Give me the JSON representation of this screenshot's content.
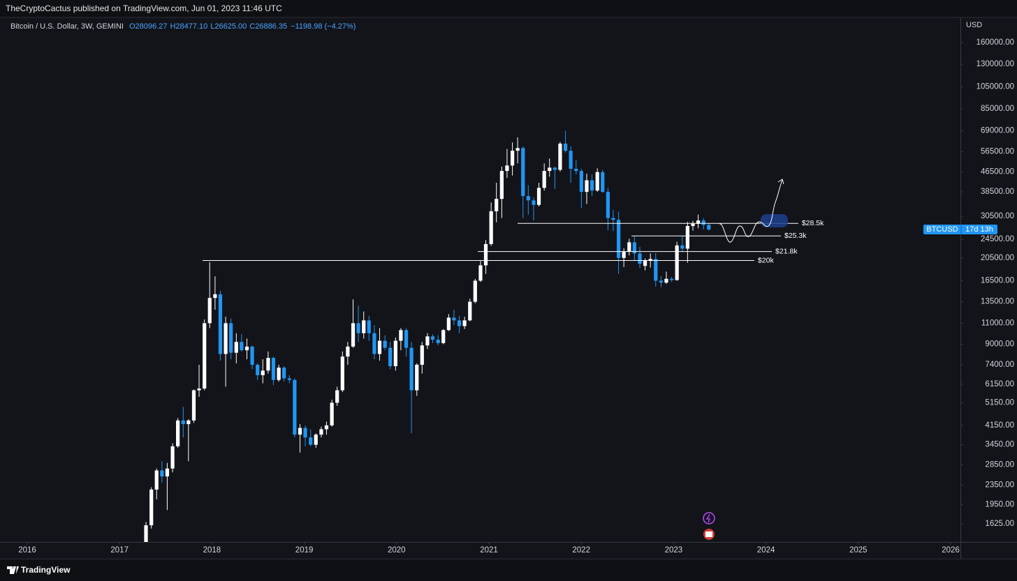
{
  "header": {
    "publisher": "TheCryptoCactus published on TradingView.com, Jun 01, 2023 11:46 UTC"
  },
  "footer": {
    "brand": "TradingView"
  },
  "chart_data": {
    "type": "candlestick",
    "title": "Bitcoin / U.S. Dollar, 3W, GEMINI",
    "ohlc_legend": [
      "O28096.27",
      "H28477.10",
      "L26625.00",
      "C26886.35",
      "−1198.98 (−4.27%)"
    ],
    "y_axis_label": "USD",
    "log_scale": true,
    "grid": false,
    "up_color": "#ffffff",
    "down_color": "#2196f3",
    "xlim": [
      2015.705,
      2026.106
    ],
    "xticks": [
      2016,
      2017,
      2018,
      2019,
      2020,
      2021,
      2022,
      2023,
      2024,
      2025,
      2026
    ],
    "ylim": [
      1365,
      203300
    ],
    "yticks": [
      {
        "value": 1625,
        "label": "1625.00"
      },
      {
        "value": 1950,
        "label": "1950.00"
      },
      {
        "value": 2350,
        "label": "2350.00"
      },
      {
        "value": 2850,
        "label": "2850.00"
      },
      {
        "value": 3450,
        "label": "3450.00"
      },
      {
        "value": 4150,
        "label": "4150.00"
      },
      {
        "value": 5150,
        "label": "5150.00"
      },
      {
        "value": 6150,
        "label": "6150.00"
      },
      {
        "value": 7400,
        "label": "7400.00"
      },
      {
        "value": 9000,
        "label": "9000.00"
      },
      {
        "value": 11000,
        "label": "11000.00"
      },
      {
        "value": 13500,
        "label": "13500.00"
      },
      {
        "value": 16500,
        "label": "16500.00"
      },
      {
        "value": 20500,
        "label": "20500.00"
      },
      {
        "value": 24500,
        "label": "24500.00"
      },
      {
        "value": 30500,
        "label": "30500.00"
      },
      {
        "value": 38500,
        "label": "38500.00"
      },
      {
        "value": 46500,
        "label": "46500.00"
      },
      {
        "value": 56500,
        "label": "56500.00"
      },
      {
        "value": 69000,
        "label": "69000.00"
      },
      {
        "value": 85000,
        "label": "85000.00"
      },
      {
        "value": 105000,
        "label": "105000.00"
      },
      {
        "value": 130000,
        "label": "130000.00"
      },
      {
        "value": 160000,
        "label": "160000.00"
      }
    ],
    "x": [
      2017.286,
      2017.344,
      2017.401,
      2017.459,
      2017.516,
      2017.574,
      2017.631,
      2017.689,
      2017.746,
      2017.804,
      2017.861,
      2017.919,
      2017.976,
      2018.034,
      2018.091,
      2018.149,
      2018.206,
      2018.264,
      2018.321,
      2018.379,
      2018.436,
      2018.494,
      2018.551,
      2018.609,
      2018.666,
      2018.724,
      2018.781,
      2018.839,
      2018.896,
      2018.954,
      2019.011,
      2019.069,
      2019.126,
      2019.184,
      2019.241,
      2019.299,
      2019.356,
      2019.414,
      2019.471,
      2019.529,
      2019.586,
      2019.644,
      2019.701,
      2019.759,
      2019.816,
      2019.874,
      2019.931,
      2019.989,
      2020.046,
      2020.104,
      2020.161,
      2020.219,
      2020.276,
      2020.334,
      2020.391,
      2020.449,
      2020.506,
      2020.564,
      2020.621,
      2020.679,
      2020.736,
      2020.794,
      2020.851,
      2020.909,
      2020.966,
      2021.024,
      2021.081,
      2021.139,
      2021.196,
      2021.254,
      2021.311,
      2021.369,
      2021.426,
      2021.484,
      2021.541,
      2021.599,
      2021.656,
      2021.714,
      2021.771,
      2021.829,
      2021.886,
      2021.944,
      2022.001,
      2022.059,
      2022.116,
      2022.174,
      2022.231,
      2022.289,
      2022.346,
      2022.404,
      2022.461,
      2022.519,
      2022.576,
      2022.634,
      2022.691,
      2022.749,
      2022.806,
      2022.864,
      2022.921,
      2022.979,
      2023.036,
      2023.094,
      2023.151,
      2023.209,
      2023.266,
      2023.324,
      2023.381
    ],
    "open": [
      1300,
      1600,
      2250,
      2700,
      2550,
      2750,
      3400,
      4350,
      4200,
      4350,
      5800,
      5900,
      11000,
      14000,
      14500,
      8200,
      11000,
      8300,
      9200,
      8500,
      8800,
      7400,
      6700,
      7000,
      7900,
      6400,
      7200,
      6500,
      6400,
      3800,
      4050,
      3700,
      3450,
      3800,
      4000,
      4150,
      5150,
      5800,
      8000,
      8800,
      11000,
      10000,
      11300,
      10000,
      8200,
      9300,
      8700,
      7300,
      9300,
      10300,
      8700,
      5800,
      7400,
      8900,
      9700,
      9400,
      9100,
      10300,
      11600,
      11300,
      10700,
      11300,
      13500,
      16500,
      19100,
      23400,
      32000,
      36000,
      47000,
      49500,
      57000,
      58500,
      37000,
      35500,
      34000,
      40000,
      47000,
      48500,
      47500,
      61000,
      57000,
      48000,
      47000,
      38500,
      43000,
      39000,
      46500,
      38500,
      30000,
      29500,
      20500,
      21800,
      23800,
      21400,
      19000,
      20000,
      20300,
      16500,
      16200,
      16800,
      16600,
      23100,
      22400,
      27800,
      28400,
      29300,
      28096.27
    ],
    "high": [
      1650,
      2300,
      2750,
      2950,
      2900,
      3500,
      4450,
      4950,
      4400,
      5850,
      7400,
      11400,
      19700,
      17200,
      15000,
      11700,
      11500,
      10000,
      9900,
      9500,
      8900,
      7500,
      7800,
      8400,
      8000,
      7400,
      7300,
      6700,
      6500,
      4200,
      4150,
      4000,
      3850,
      4100,
      4300,
      5300,
      6000,
      8400,
      9200,
      13800,
      13000,
      12300,
      11800,
      10800,
      10500,
      9800,
      9200,
      9600,
      10500,
      10500,
      9200,
      7500,
      9200,
      10000,
      9900,
      9800,
      10400,
      12000,
      12500,
      11800,
      11700,
      13900,
      16800,
      19900,
      24300,
      34800,
      42000,
      49000,
      58000,
      61700,
      64800,
      59500,
      41000,
      36500,
      42000,
      50500,
      52900,
      49000,
      62000,
      69000,
      59500,
      52000,
      48000,
      45800,
      45500,
      48200,
      47500,
      40000,
      32400,
      31900,
      22500,
      24600,
      25200,
      22800,
      20400,
      21400,
      21500,
      17200,
      18000,
      17100,
      23900,
      25200,
      28900,
      29200,
      31000,
      30000,
      28477.1
    ],
    "low": [
      1250,
      1550,
      2050,
      2400,
      1850,
      2650,
      3350,
      3700,
      2950,
      4250,
      5450,
      5800,
      10500,
      12500,
      7700,
      6000,
      7800,
      7500,
      8400,
      7800,
      7100,
      6400,
      6200,
      6800,
      6100,
      6300,
      6300,
      6200,
      3700,
      3200,
      3400,
      3400,
      3350,
      3700,
      3800,
      4100,
      5000,
      5700,
      7400,
      8700,
      9200,
      9500,
      9300,
      7800,
      7700,
      8500,
      7100,
      7000,
      8500,
      8000,
      3850,
      5500,
      6800,
      8600,
      9100,
      8900,
      9000,
      10200,
      10800,
      10000,
      10400,
      11200,
      13300,
      16300,
      17600,
      23000,
      28800,
      30000,
      44000,
      45000,
      50500,
      30000,
      31000,
      29300,
      33500,
      39000,
      44500,
      39600,
      46800,
      56000,
      42000,
      45500,
      33000,
      34300,
      37000,
      38500,
      38200,
      26700,
      26500,
      17600,
      18800,
      21000,
      20000,
      18600,
      18200,
      18700,
      15600,
      15500,
      16000,
      16300,
      16500,
      21700,
      19600,
      26600,
      27200,
      26900,
      26625
    ],
    "close": [
      1600,
      2250,
      2700,
      2550,
      2750,
      3400,
      4350,
      4200,
      4350,
      5800,
      5900,
      11000,
      14000,
      14500,
      8200,
      11000,
      8300,
      9200,
      8500,
      8800,
      7400,
      6700,
      7000,
      7900,
      6400,
      7200,
      6500,
      6400,
      3800,
      4050,
      3700,
      3450,
      3800,
      4000,
      4150,
      5150,
      5800,
      8000,
      8800,
      11000,
      10000,
      11300,
      10000,
      8200,
      9300,
      8700,
      7300,
      9300,
      10300,
      8700,
      5800,
      7400,
      8900,
      9700,
      9400,
      9100,
      10300,
      11600,
      11300,
      10700,
      11300,
      13500,
      16500,
      19100,
      23400,
      32000,
      36000,
      47000,
      49500,
      57000,
      58500,
      37000,
      35500,
      34000,
      40000,
      47000,
      48500,
      47500,
      61000,
      57000,
      48000,
      47000,
      38500,
      43000,
      39000,
      46500,
      38500,
      30000,
      29500,
      20500,
      21800,
      23800,
      21400,
      19400,
      20000,
      20300,
      16500,
      16200,
      16800,
      16600,
      23100,
      22400,
      27800,
      28400,
      29300,
      28100,
      26886.35
    ],
    "levels": [
      {
        "label": "$28.5k",
        "value": 28500,
        "x_start": 2021.31,
        "x_end": 2024.35
      },
      {
        "label": "$25.3k",
        "value": 25300,
        "x_start": 2022.543,
        "x_end": 2024.162
      },
      {
        "label": "$21.8k",
        "value": 21800,
        "x_start": 2020.879,
        "x_end": 2024.064
      },
      {
        "label": "$20k",
        "value": 20000,
        "x_start": 2017.899,
        "x_end": 2023.874
      }
    ],
    "price_tag": {
      "symbol": "BTCUSD",
      "countdown": "17d 13h"
    }
  }
}
